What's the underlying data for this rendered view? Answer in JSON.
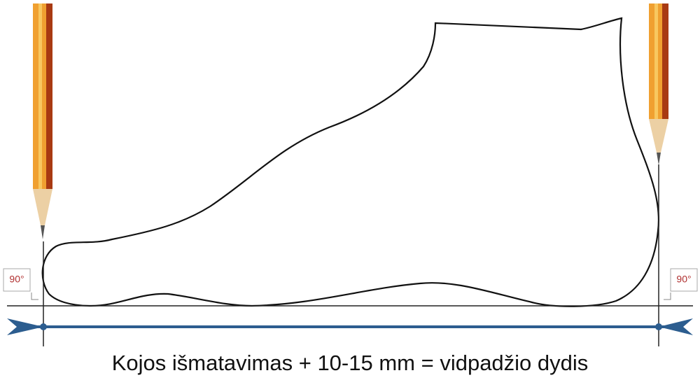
{
  "angle_labels": [
    "90°",
    "90°"
  ],
  "caption": "Kojos išmatavimas + 10-15 mm = vidpadžio dydis"
}
